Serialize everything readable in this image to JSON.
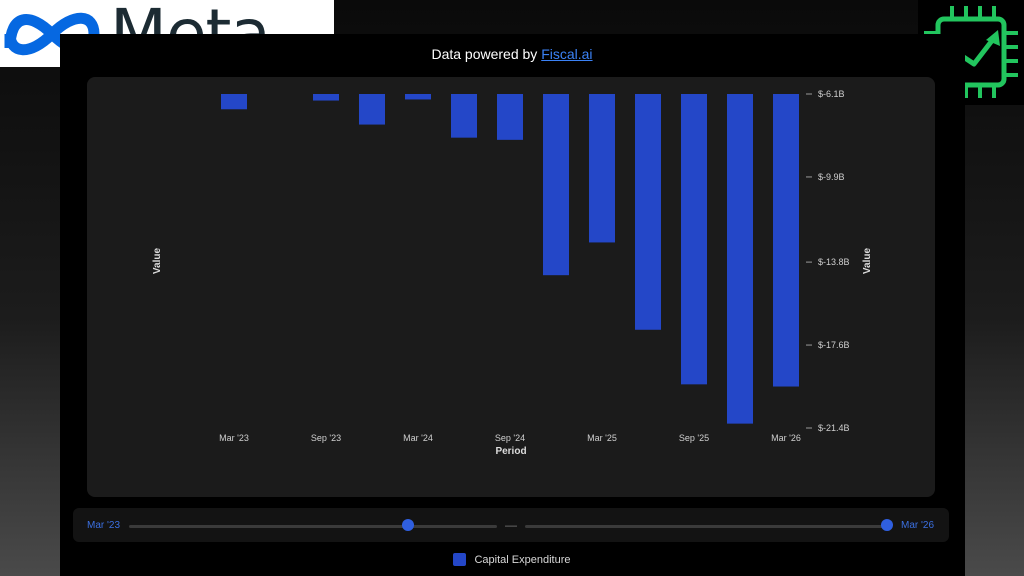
{
  "branding": {
    "logo_text": "Meta",
    "chip_icon": "chip-growth-arrow-icon",
    "infinity_icon": "meta-infinity-logo-icon"
  },
  "header": {
    "powered_prefix": "Data powered by ",
    "powered_link": "Fiscal.ai"
  },
  "colors": {
    "bar": "#2447c8",
    "accent": "#2f5fe0",
    "panel": "#1b1b1b",
    "chip_green": "#22c55e"
  },
  "chart_data": {
    "type": "bar",
    "categories": [
      "Mar '23",
      "Jun '23",
      "Sep '23",
      "Dec '23",
      "Mar '24",
      "Jun '24",
      "Sep '24",
      "Dec '24",
      "Mar '25",
      "Jun '25",
      "Sep '25",
      "Dec '25",
      "Mar '26"
    ],
    "series": [
      {
        "name": "Capital Expenditure",
        "values": [
          -6.8,
          null,
          -6.4,
          -7.5,
          -6.35,
          -8.1,
          -8.2,
          -14.4,
          -12.9,
          -16.9,
          -19.4,
          -21.2,
          -19.5
        ]
      }
    ],
    "x_tick_labels": [
      "Mar '23",
      "Sep '23",
      "Mar '24",
      "Sep '24",
      "Mar '25",
      "Sep '25",
      "Mar '26"
    ],
    "y_tick_labels": [
      "$-6.1B",
      "$-9.9B",
      "$-13.8B",
      "$-17.6B",
      "$-21.4B"
    ],
    "y_ticks": [
      -6.1,
      -9.9,
      -13.8,
      -17.6,
      -21.4
    ],
    "ylim": [
      -21.4,
      -6.1
    ],
    "xlabel": "Period",
    "ylabel": "Value",
    "ylabel_right": "Value",
    "grid": false,
    "legend_position": "bottom-center"
  },
  "range_slider": {
    "start_label": "Mar '23",
    "end_label": "Mar '26",
    "separator": "—"
  }
}
